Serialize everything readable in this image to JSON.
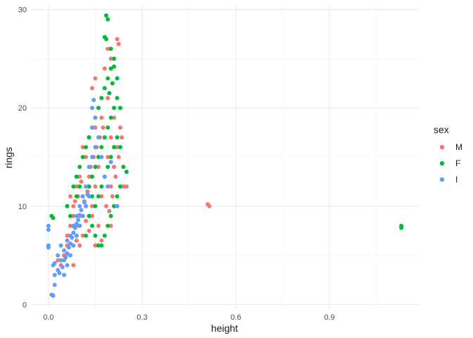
{
  "chart_data": {
    "type": "scatter",
    "xlabel": "height",
    "ylabel": "rings",
    "xlim": [
      -0.056,
      1.186
    ],
    "ylim": [
      -0.4,
      30.4
    ],
    "x_ticks": [
      0.0,
      0.3,
      0.6,
      0.9
    ],
    "x_tick_labels": [
      "0.0",
      "0.3",
      "0.6",
      "0.9"
    ],
    "y_ticks": [
      0,
      10,
      20,
      30
    ],
    "y_tick_labels": [
      "0",
      "10",
      "20",
      "30"
    ],
    "grid": true,
    "legend": {
      "title": "sex",
      "position": "right"
    },
    "series": [
      {
        "name": "M",
        "color": "#F8766D",
        "points": [
          [
            0.51,
            10.2
          ],
          [
            0.515,
            10.0
          ],
          [
            0.11,
            11
          ],
          [
            0.12,
            12
          ],
          [
            0.13,
            13
          ],
          [
            0.14,
            10
          ],
          [
            0.15,
            12
          ],
          [
            0.16,
            14
          ],
          [
            0.17,
            11
          ],
          [
            0.18,
            13
          ],
          [
            0.19,
            15
          ],
          [
            0.2,
            12
          ],
          [
            0.21,
            14
          ],
          [
            0.22,
            16
          ],
          [
            0.1,
            9
          ],
          [
            0.09,
            8
          ],
          [
            0.08,
            10
          ],
          [
            0.07,
            11
          ],
          [
            0.13,
            17
          ],
          [
            0.15,
            18
          ],
          [
            0.17,
            19
          ],
          [
            0.19,
            21
          ],
          [
            0.14,
            22
          ],
          [
            0.15,
            23
          ],
          [
            0.16,
            20
          ],
          [
            0.18,
            24
          ],
          [
            0.19,
            26
          ],
          [
            0.2,
            25
          ],
          [
            0.22,
            27
          ],
          [
            0.225,
            26.5
          ],
          [
            0.2,
            17
          ],
          [
            0.21,
            19
          ],
          [
            0.23,
            18
          ],
          [
            0.24,
            12
          ],
          [
            0.25,
            12
          ],
          [
            0.12,
            15
          ],
          [
            0.11,
            16
          ],
          [
            0.1,
            13
          ],
          [
            0.09,
            12
          ],
          [
            0.08,
            9
          ],
          [
            0.07,
            8
          ],
          [
            0.06,
            7
          ],
          [
            0.14,
            9
          ],
          [
            0.16,
            8
          ],
          [
            0.18,
            7
          ],
          [
            0.2,
            8
          ],
          [
            0.15,
            6
          ],
          [
            0.17,
            6.5
          ],
          [
            0.13,
            7.5
          ],
          [
            0.12,
            8.5
          ],
          [
            0.05,
            5
          ],
          [
            0.06,
            6
          ],
          [
            0.04,
            4
          ],
          [
            0.03,
            4.5
          ],
          [
            0.08,
            4
          ],
          [
            0.1,
            6
          ],
          [
            0.11,
            7
          ],
          [
            0.09,
            6.5
          ],
          [
            0.135,
            14
          ],
          [
            0.145,
            15
          ],
          [
            0.155,
            16
          ],
          [
            0.165,
            17
          ],
          [
            0.175,
            18
          ],
          [
            0.185,
            10
          ],
          [
            0.195,
            9.5
          ],
          [
            0.205,
            11
          ],
          [
            0.215,
            13
          ],
          [
            0.225,
            15
          ],
          [
            0.235,
            17
          ],
          [
            0.125,
            11.5
          ],
          [
            0.115,
            10.5
          ],
          [
            0.105,
            12.5
          ],
          [
            0.095,
            11
          ],
          [
            0.085,
            10.5
          ]
        ]
      },
      {
        "name": "F",
        "color": "#00BA38",
        "points": [
          [
            1.13,
            8.0
          ],
          [
            1.13,
            7.8
          ],
          [
            0.01,
            9.0
          ],
          [
            0.015,
            8.8
          ],
          [
            0.06,
            10
          ],
          [
            0.07,
            9
          ],
          [
            0.08,
            12
          ],
          [
            0.09,
            13
          ],
          [
            0.1,
            14
          ],
          [
            0.11,
            15
          ],
          [
            0.12,
            16
          ],
          [
            0.13,
            17
          ],
          [
            0.14,
            18
          ],
          [
            0.15,
            19
          ],
          [
            0.16,
            20
          ],
          [
            0.17,
            21
          ],
          [
            0.18,
            22
          ],
          [
            0.19,
            23
          ],
          [
            0.2,
            24
          ],
          [
            0.21,
            25
          ],
          [
            0.22,
            23
          ],
          [
            0.185,
            29.4
          ],
          [
            0.19,
            29.0
          ],
          [
            0.18,
            27.2
          ],
          [
            0.185,
            27.0
          ],
          [
            0.2,
            26
          ],
          [
            0.21,
            24.2
          ],
          [
            0.205,
            22.5
          ],
          [
            0.195,
            21.5
          ],
          [
            0.22,
            21
          ],
          [
            0.23,
            20
          ],
          [
            0.24,
            14
          ],
          [
            0.25,
            13.5
          ],
          [
            0.23,
            12
          ],
          [
            0.22,
            11
          ],
          [
            0.21,
            10
          ],
          [
            0.2,
            9
          ],
          [
            0.19,
            8
          ],
          [
            0.18,
            7
          ],
          [
            0.17,
            6
          ],
          [
            0.16,
            6
          ],
          [
            0.15,
            7
          ],
          [
            0.14,
            8
          ],
          [
            0.13,
            9
          ],
          [
            0.12,
            10
          ],
          [
            0.11,
            11
          ],
          [
            0.1,
            12
          ],
          [
            0.09,
            11
          ],
          [
            0.14,
            13
          ],
          [
            0.15,
            14
          ],
          [
            0.16,
            15
          ],
          [
            0.17,
            16
          ],
          [
            0.18,
            17
          ],
          [
            0.19,
            18
          ],
          [
            0.2,
            19
          ],
          [
            0.21,
            20
          ],
          [
            0.13,
            12
          ],
          [
            0.14,
            11
          ],
          [
            0.15,
            10
          ],
          [
            0.16,
            11
          ],
          [
            0.17,
            12
          ],
          [
            0.18,
            13
          ],
          [
            0.19,
            14
          ],
          [
            0.2,
            15
          ],
          [
            0.21,
            16
          ],
          [
            0.22,
            17
          ],
          [
            0.23,
            16
          ],
          [
            0.08,
            8
          ],
          [
            0.09,
            7
          ],
          [
            0.1,
            8
          ],
          [
            0.11,
            9
          ],
          [
            0.12,
            7
          ]
        ]
      },
      {
        "name": "I",
        "color": "#619CFF",
        "points": [
          [
            0.0,
            8.0
          ],
          [
            0.0,
            7.6
          ],
          [
            0.0,
            6.0
          ],
          [
            0.0,
            5.8
          ],
          [
            0.01,
            1.0
          ],
          [
            0.015,
            0.9
          ],
          [
            0.02,
            2.0
          ],
          [
            0.02,
            3.0
          ],
          [
            0.015,
            4.0
          ],
          [
            0.02,
            4.2
          ],
          [
            0.03,
            3.5
          ],
          [
            0.03,
            5.0
          ],
          [
            0.04,
            4.5
          ],
          [
            0.04,
            6.0
          ],
          [
            0.05,
            5.5
          ],
          [
            0.05,
            3.0
          ],
          [
            0.06,
            4.0
          ],
          [
            0.06,
            6.5
          ],
          [
            0.07,
            5.0
          ],
          [
            0.07,
            7.0
          ],
          [
            0.08,
            6.0
          ],
          [
            0.08,
            8.0
          ],
          [
            0.09,
            7.0
          ],
          [
            0.09,
            9.0
          ],
          [
            0.1,
            8.0
          ],
          [
            0.1,
            10.0
          ],
          [
            0.11,
            9.0
          ],
          [
            0.11,
            11.0
          ],
          [
            0.12,
            10.0
          ],
          [
            0.12,
            12.0
          ],
          [
            0.13,
            11.0
          ],
          [
            0.13,
            14.0
          ],
          [
            0.14,
            15.0
          ],
          [
            0.15,
            16.0
          ],
          [
            0.14,
            18.0
          ],
          [
            0.15,
            19.0
          ],
          [
            0.14,
            20.0
          ],
          [
            0.145,
            20.8
          ],
          [
            0.16,
            17.0
          ],
          [
            0.17,
            15.0
          ],
          [
            0.18,
            13.0
          ],
          [
            0.19,
            12.0
          ],
          [
            0.2,
            14.5
          ],
          [
            0.22,
            10.0
          ],
          [
            0.05,
            4.5
          ],
          [
            0.06,
            5.2
          ],
          [
            0.07,
            6.2
          ],
          [
            0.08,
            7.3
          ],
          [
            0.09,
            8.2
          ],
          [
            0.1,
            9.1
          ],
          [
            0.035,
            3.2
          ],
          [
            0.045,
            3.8
          ],
          [
            0.055,
            4.8
          ],
          [
            0.065,
            5.8
          ],
          [
            0.075,
            6.8
          ],
          [
            0.085,
            7.8
          ],
          [
            0.095,
            8.6
          ],
          [
            0.105,
            9.6
          ],
          [
            0.115,
            10.4
          ],
          [
            0.125,
            11.2
          ]
        ]
      }
    ]
  }
}
